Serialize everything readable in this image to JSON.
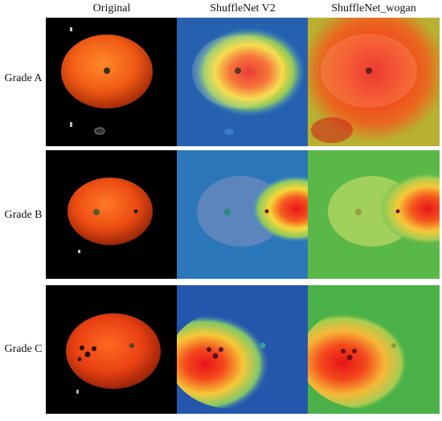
{
  "figure": {
    "columns": [
      "Original",
      "ShuffleNet V2",
      "ShuffleNet_wogan"
    ],
    "rows": [
      "Grade A",
      "Grade B",
      "Grade C"
    ]
  },
  "colors": {
    "original_background": "#000000",
    "orange_fruit": "#f05a14",
    "heatmap_low": "#1b3fa0",
    "heatmap_mid": "#f6d838",
    "heatmap_high": "#e8141a",
    "wogan_background_green": "#5ab848"
  }
}
